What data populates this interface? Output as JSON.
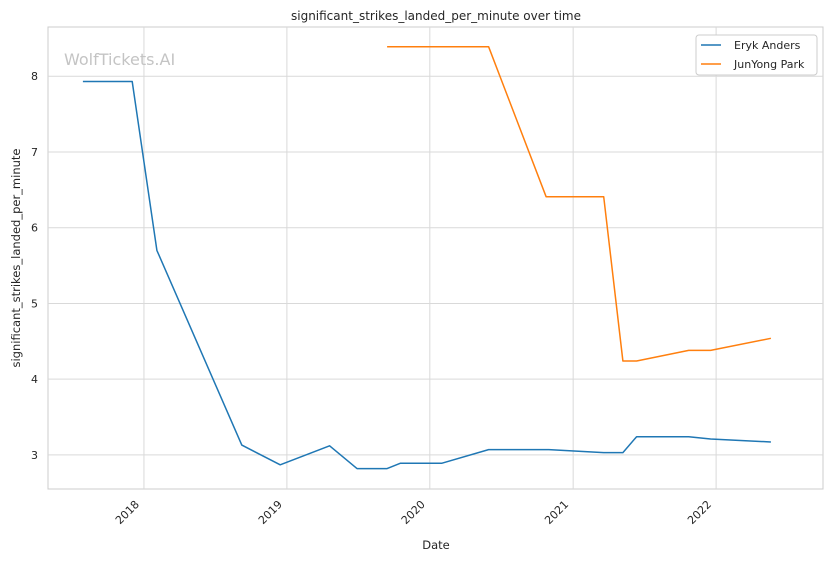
{
  "chart_data": {
    "type": "line",
    "title": "significant_strikes_landed_per_minute over time",
    "xlabel": "Date",
    "ylabel": "significant_strikes_landed_per_minute",
    "watermark": "WolfTickets.AI",
    "xlim": [
      "2017-05-01",
      "2022-10-01"
    ],
    "ylim": [
      2.55,
      8.65
    ],
    "x_ticks": [
      "2018",
      "2019",
      "2020",
      "2021",
      "2022"
    ],
    "y_ticks": [
      "3",
      "4",
      "5",
      "6",
      "7",
      "8"
    ],
    "grid": true,
    "legend_position": "top-right",
    "series": [
      {
        "name": "Eryk Anders",
        "color": "#1f77b4",
        "points": [
          [
            "2017-07-29",
            7.93
          ],
          [
            "2017-12-02",
            7.93
          ],
          [
            "2018-02-03",
            5.7
          ],
          [
            "2018-09-08",
            3.13
          ],
          [
            "2018-12-15",
            2.87
          ],
          [
            "2019-04-20",
            3.12
          ],
          [
            "2019-06-29",
            2.82
          ],
          [
            "2019-09-14",
            2.82
          ],
          [
            "2019-10-18",
            2.89
          ],
          [
            "2020-02-01",
            2.89
          ],
          [
            "2020-05-30",
            3.07
          ],
          [
            "2020-10-31",
            3.07
          ],
          [
            "2021-03-20",
            3.03
          ],
          [
            "2021-05-08",
            3.03
          ],
          [
            "2021-06-12",
            3.24
          ],
          [
            "2021-10-23",
            3.24
          ],
          [
            "2021-12-18",
            3.21
          ],
          [
            "2022-05-21",
            3.17
          ]
        ]
      },
      {
        "name": "JunYong Park",
        "color": "#ff7f0e",
        "points": [
          [
            "2019-09-14",
            8.39
          ],
          [
            "2020-05-30",
            8.39
          ],
          [
            "2020-10-24",
            6.41
          ],
          [
            "2021-03-20",
            6.41
          ],
          [
            "2021-05-08",
            4.24
          ],
          [
            "2021-06-12",
            4.24
          ],
          [
            "2021-10-23",
            4.38
          ],
          [
            "2021-12-18",
            4.38
          ],
          [
            "2022-05-21",
            4.54
          ]
        ]
      }
    ]
  }
}
